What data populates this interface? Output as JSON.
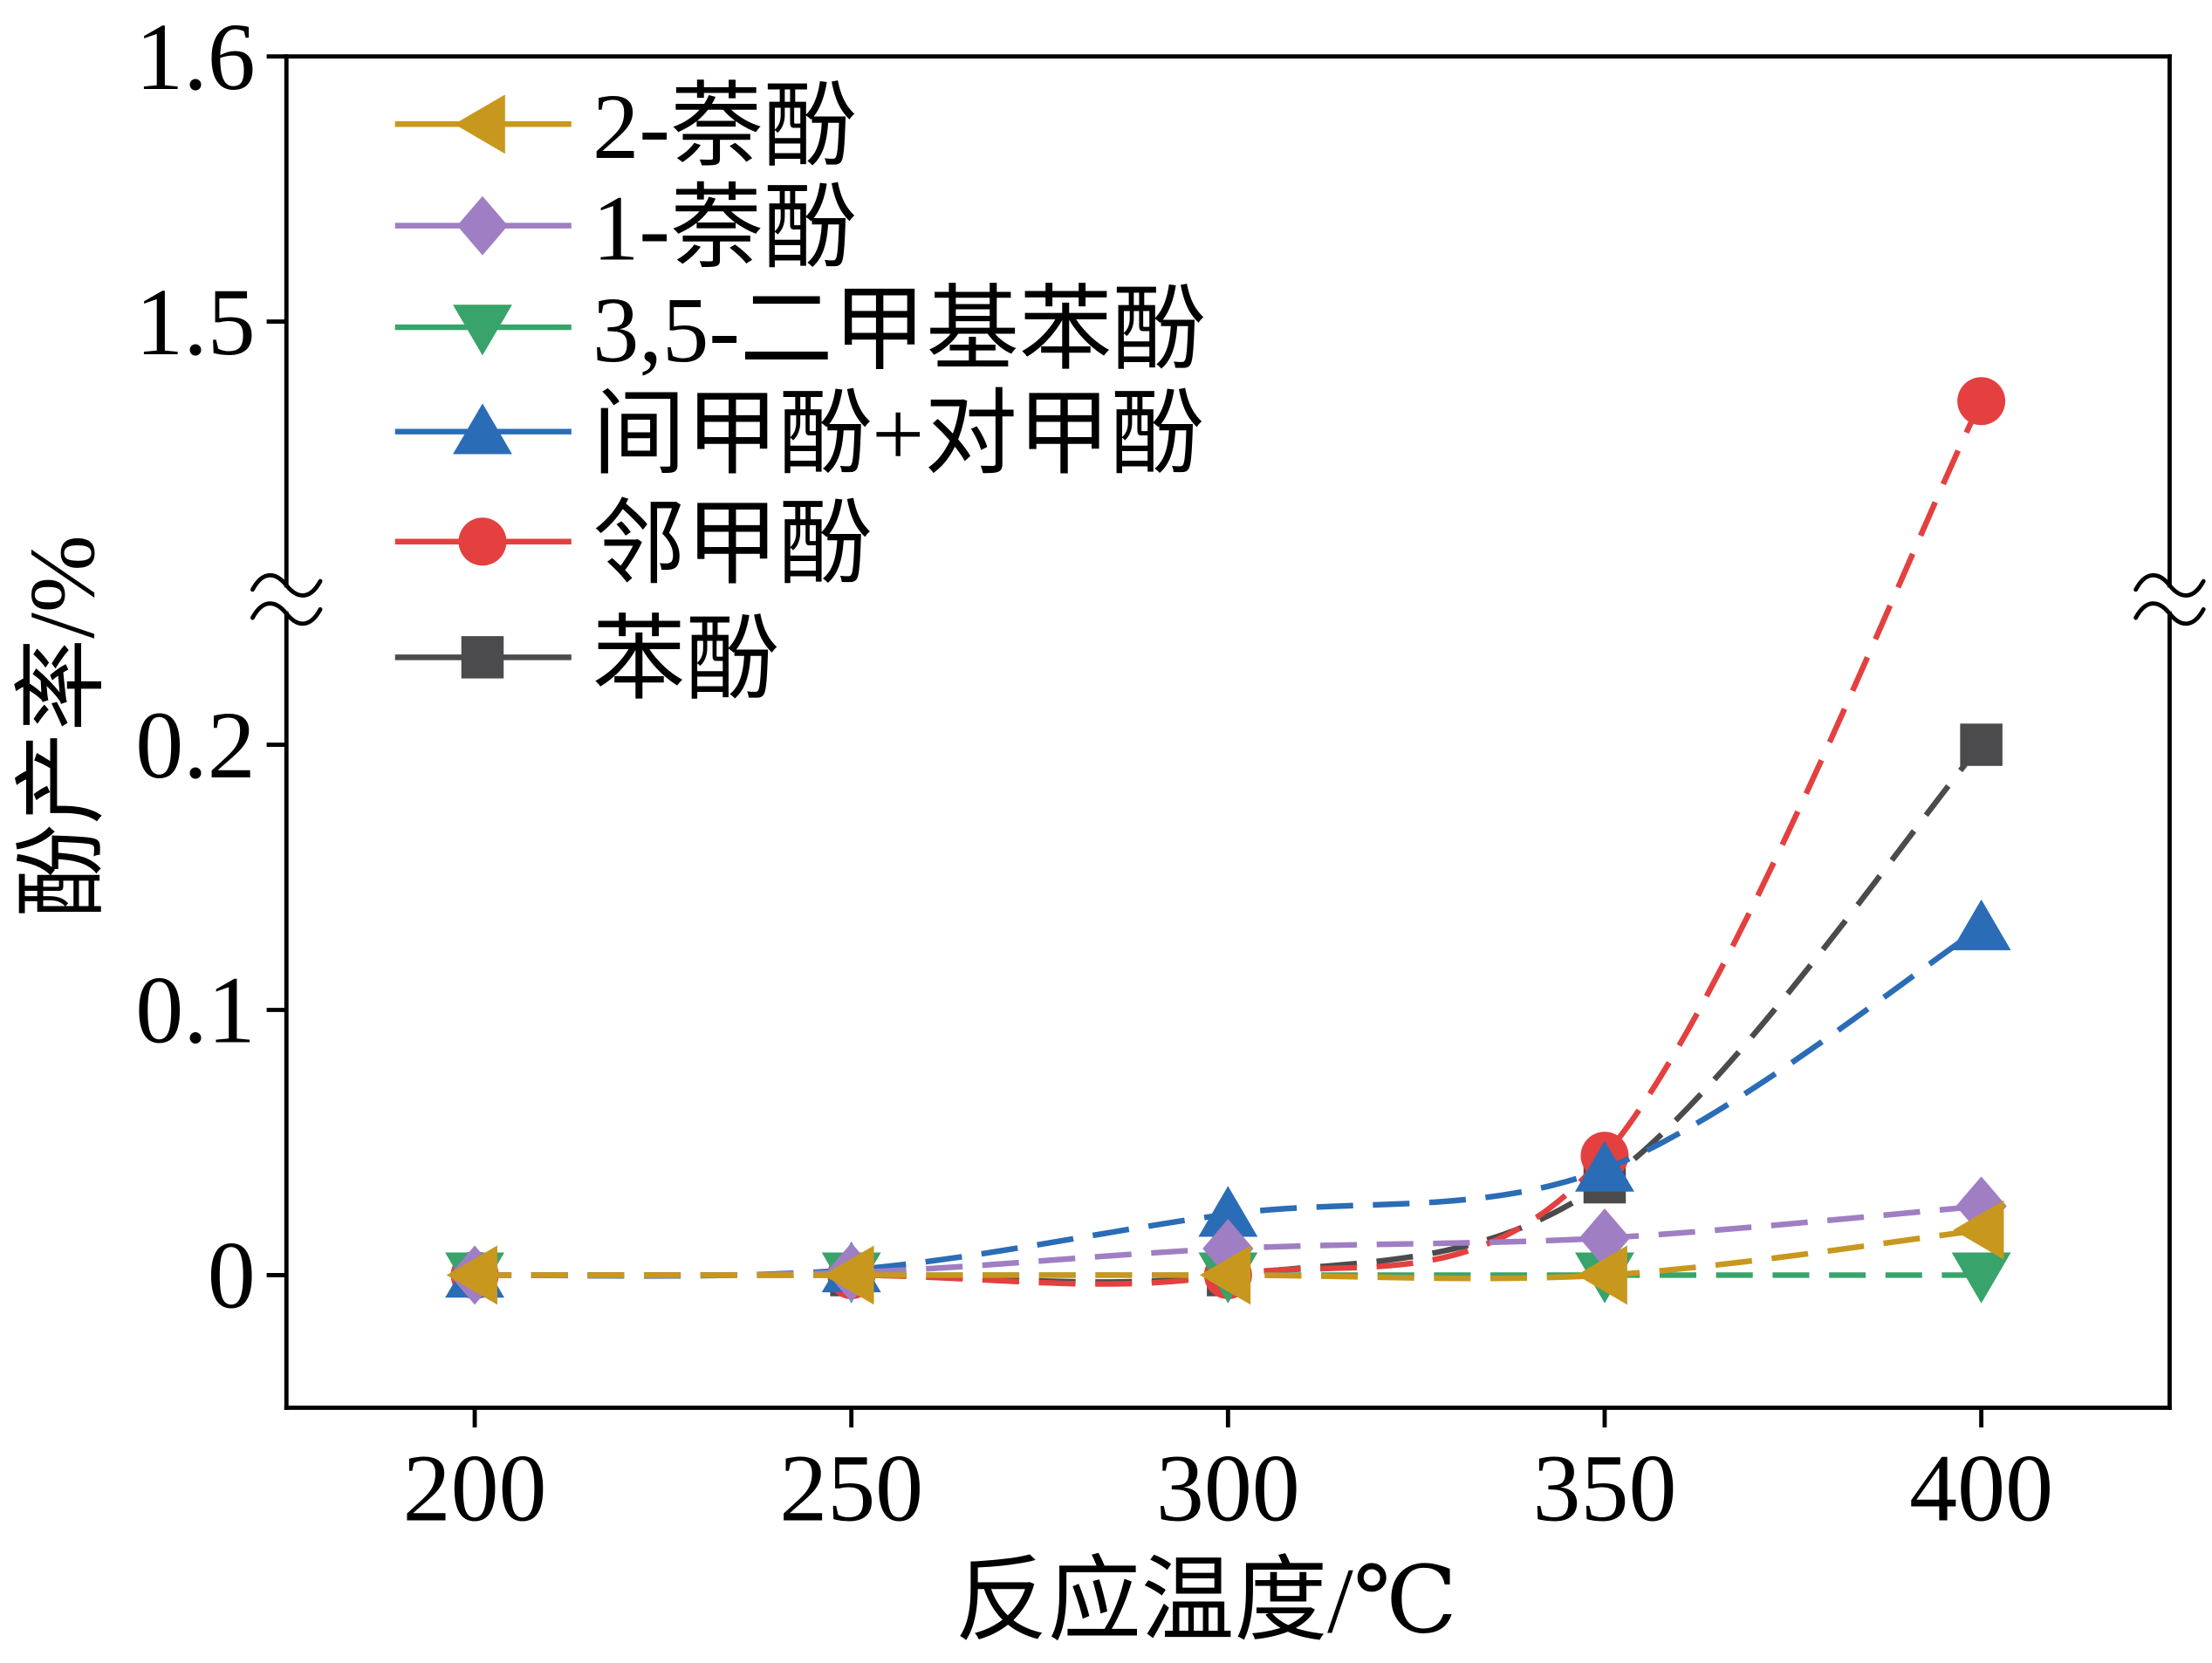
{
  "chart_data": {
    "type": "line",
    "xlabel": "反应温度/℃",
    "ylabel": "酚产率/%",
    "x": [
      200,
      250,
      300,
      350,
      400
    ],
    "xlim": [
      175,
      425
    ],
    "ylim": [
      -0.05,
      1.6
    ],
    "y_axis_break": [
      0.25,
      1.4
    ],
    "x_ticks": [
      200,
      250,
      300,
      350,
      400
    ],
    "x_tick_labels": [
      "200",
      "250",
      "300",
      "350",
      "400"
    ],
    "y_ticks": [
      0,
      0.1,
      0.2,
      1.5,
      1.6
    ],
    "y_tick_labels": [
      "0",
      "0.1",
      "0.2",
      "1.5",
      "1.6"
    ],
    "grid": false,
    "legend_position": "top-left",
    "series": [
      {
        "name": "2-萘酚",
        "color": "#C8981E",
        "marker": "left-triangle",
        "values": [
          0,
          0,
          0,
          0,
          0.017
        ]
      },
      {
        "name": "1-萘酚",
        "color": "#A07EC3",
        "marker": "diamond",
        "values": [
          0,
          0.001,
          0.01,
          0.014,
          0.026
        ]
      },
      {
        "name": "3,5-二甲基苯酚",
        "color": "#38A36A",
        "marker": "down-triangle",
        "values": [
          0,
          0,
          0,
          0,
          0
        ]
      },
      {
        "name": "间甲酚+对甲酚",
        "color": "#2B6CB6",
        "marker": "up-triangle",
        "values": [
          0,
          0.002,
          0.023,
          0.04,
          0.131
        ]
      },
      {
        "name": "邻甲酚",
        "color": "#E3403F",
        "marker": "circle",
        "values": [
          0,
          0,
          0,
          0.045,
          1.47
        ]
      },
      {
        "name": "苯酚",
        "color": "#4B4B4D",
        "marker": "square",
        "values": [
          0,
          0,
          0,
          0.035,
          0.2
        ]
      }
    ]
  }
}
